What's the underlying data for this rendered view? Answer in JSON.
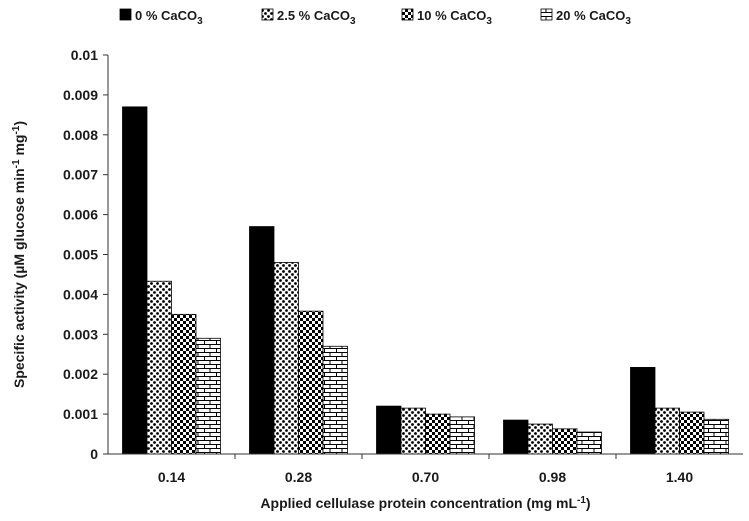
{
  "chart_data": {
    "type": "bar",
    "categories": [
      "0.14",
      "0.28",
      "0.70",
      "0.98",
      "1.40"
    ],
    "series": [
      {
        "name": "0 % CaCO",
        "name_sub": "3",
        "values": [
          0.0087,
          0.0057,
          0.0012,
          0.00085,
          0.00217
        ],
        "pattern": "solid"
      },
      {
        "name": "2.5 % CaCO",
        "name_sub": "3",
        "values": [
          0.00433,
          0.0048,
          0.00115,
          0.00075,
          0.00115
        ],
        "pattern": "dots"
      },
      {
        "name": "10 % CaCO",
        "name_sub": "3",
        "values": [
          0.0035,
          0.00358,
          0.001,
          0.00063,
          0.00105
        ],
        "pattern": "checker"
      },
      {
        "name": "20 % CaCO",
        "name_sub": "3",
        "values": [
          0.0029,
          0.0027,
          0.00093,
          0.00055,
          0.00087
        ],
        "pattern": "brick"
      }
    ],
    "yticks": [
      "0",
      "0.001",
      "0.002",
      "0.003",
      "0.004",
      "0.005",
      "0.006",
      "0.007",
      "0.008",
      "0.009",
      "0.01"
    ],
    "ylim": [
      0,
      0.01
    ],
    "ylabel": {
      "main": "Specific activity (µM glucose min",
      "sup1": "-1",
      "mid": " mg",
      "sup2": "-1",
      "end": ")"
    },
    "xlabel": {
      "main": "Applied cellulase protein concentration (mg mL",
      "sup": "-1",
      "end": ")"
    },
    "legend_position": "top",
    "grid": false,
    "colors": {
      "bar": "#000000",
      "axis": "#333333",
      "fill": "#ffffff"
    }
  }
}
